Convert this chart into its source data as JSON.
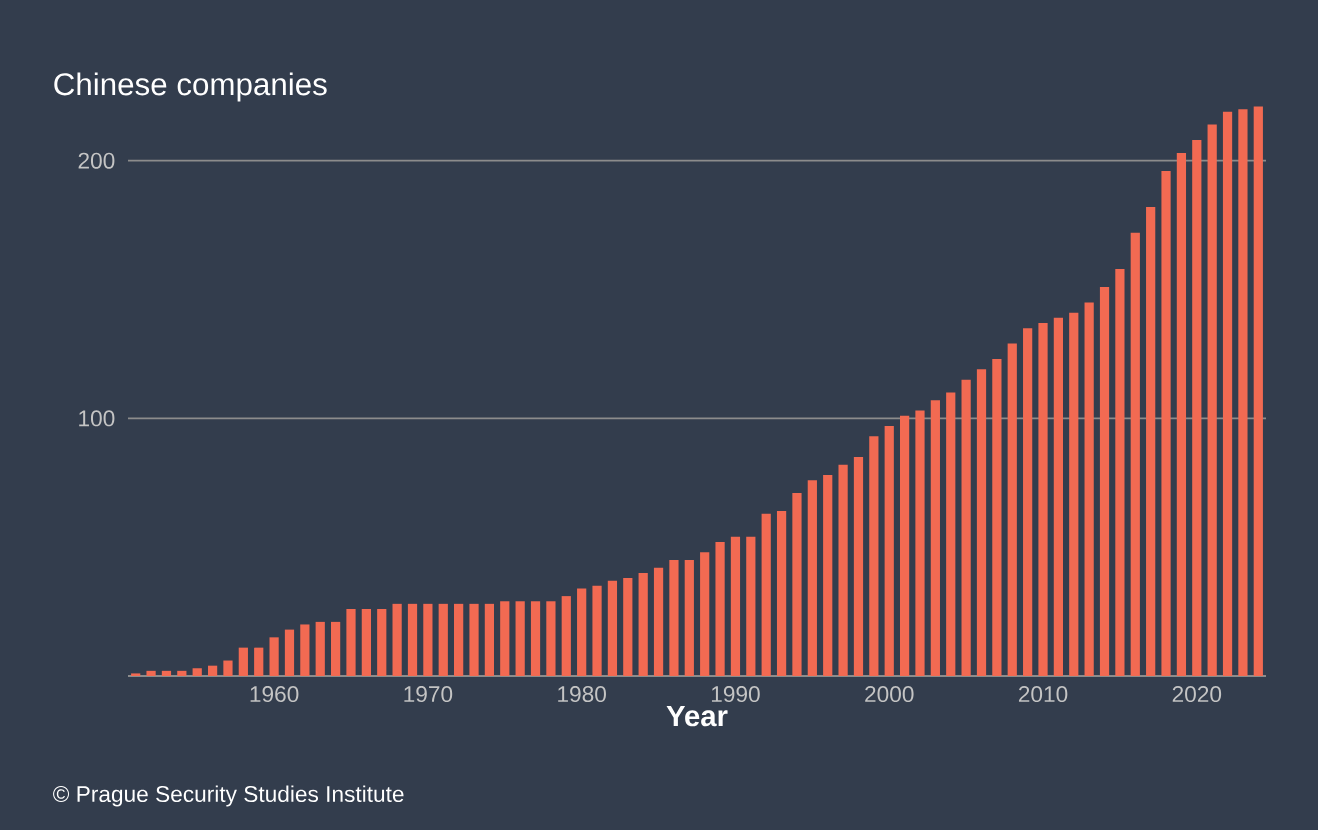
{
  "chart_data": {
    "type": "bar",
    "title": "Chinese companies",
    "xlabel": "Year",
    "annotations": [
      "© Prague Security Studies Institute"
    ],
    "x": [
      1951,
      1952,
      1953,
      1954,
      1955,
      1956,
      1957,
      1958,
      1959,
      1960,
      1961,
      1962,
      1963,
      1964,
      1965,
      1966,
      1967,
      1968,
      1969,
      1970,
      1971,
      1972,
      1973,
      1974,
      1975,
      1976,
      1977,
      1978,
      1979,
      1980,
      1981,
      1982,
      1983,
      1984,
      1985,
      1986,
      1987,
      1988,
      1989,
      1990,
      1991,
      1992,
      1993,
      1994,
      1995,
      1996,
      1997,
      1998,
      1999,
      2000,
      2001,
      2002,
      2003,
      2004,
      2005,
      2006,
      2007,
      2008,
      2009,
      2010,
      2011,
      2012,
      2013,
      2014,
      2015,
      2016,
      2017,
      2018,
      2019,
      2020,
      2021,
      2022,
      2023,
      2024
    ],
    "values": [
      1,
      2,
      2,
      2,
      3,
      4,
      6,
      11,
      11,
      15,
      18,
      20,
      21,
      21,
      26,
      26,
      26,
      28,
      28,
      28,
      28,
      28,
      28,
      28,
      29,
      29,
      29,
      29,
      31,
      34,
      35,
      37,
      38,
      40,
      42,
      45,
      45,
      48,
      52,
      54,
      54,
      63,
      64,
      71,
      76,
      78,
      82,
      85,
      93,
      97,
      101,
      103,
      107,
      110,
      115,
      119,
      123,
      129,
      135,
      137,
      139,
      141,
      145,
      151,
      158,
      172,
      182,
      196,
      203,
      208,
      214,
      219,
      220,
      221
    ],
    "color": "#f26a52",
    "xlim": [
      1950.5,
      2024.5
    ],
    "ylim": [
      0,
      222
    ],
    "xticks": [
      1960,
      1970,
      1980,
      1990,
      2000,
      2010,
      2020
    ],
    "yticks": [
      100,
      200
    ],
    "grid": "y",
    "legend": false
  }
}
